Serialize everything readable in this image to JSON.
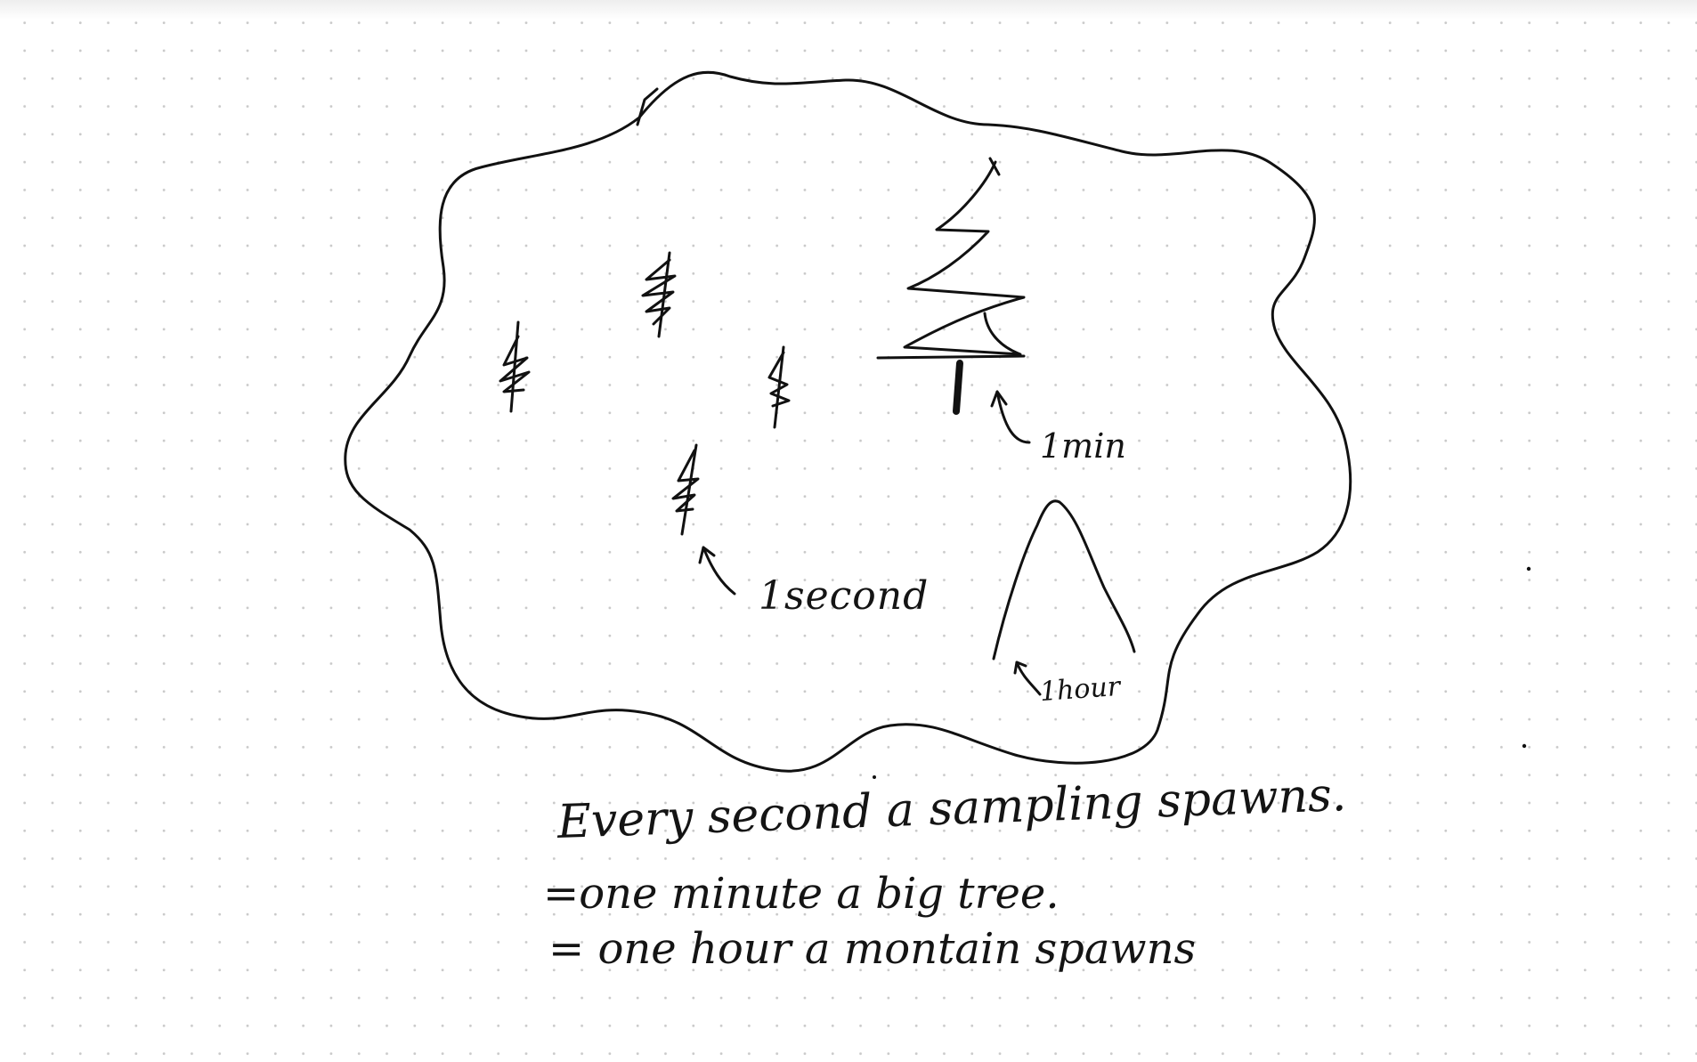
{
  "labels": {
    "one_second": "1second",
    "one_minute": "1min",
    "one_hour": "1hour"
  },
  "notes": [
    "Every second a sampling spawns.",
    "=one minute a big tree.",
    "= one hour a montain spawns"
  ],
  "colors": {
    "ink": "#111111",
    "grid_dot": "#c9c9c9",
    "background": "#ffffff"
  }
}
